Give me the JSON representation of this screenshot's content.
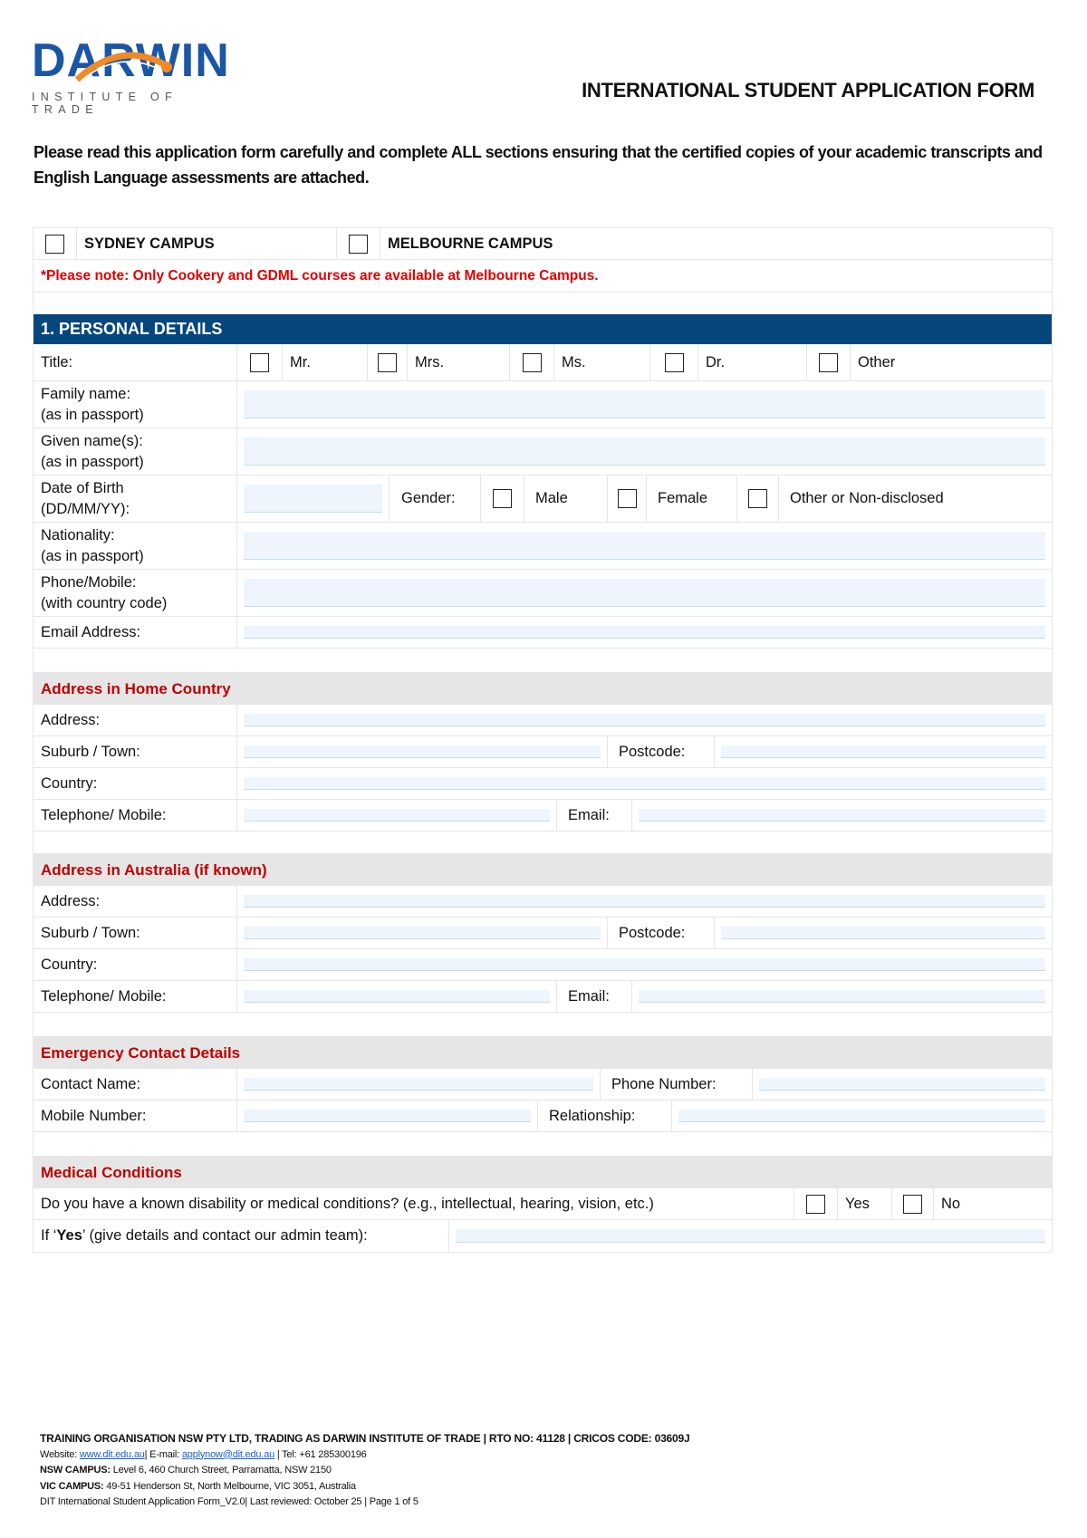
{
  "header": {
    "logo_word": "DARWIN",
    "logo_sub": "INSTITUTE OF TRADE",
    "title": "INTERNATIONAL STUDENT APPLICATION FORM",
    "intro": "Please read this application form carefully and complete ALL sections ensuring that the certified copies of your academic transcripts and English Language assessments are attached."
  },
  "colors": {
    "brand_blue": "#1a56a6",
    "brand_orange": "#f08a24",
    "section_header": "#05467d",
    "subsection_text": "#c00000",
    "note_red": "#e00000",
    "field_fill": "#eef5fd"
  },
  "campus": {
    "sydney": "SYDNEY CAMPUS",
    "melbourne": "MELBOURNE CAMPUS",
    "note": "*Please note: Only Cookery and GDML courses are available at Melbourne Campus."
  },
  "personal": {
    "heading": "1. PERSONAL DETAILS",
    "title_label": "Title:",
    "title_options": [
      "Mr.",
      "Mrs.",
      "Ms.",
      "Dr.",
      "Other"
    ],
    "family_label": "Family name:",
    "family_sub": "(as in passport)",
    "given_label": "Given name(s):",
    "given_sub": "(as in passport)",
    "dob_label": "Date of Birth",
    "dob_sub": "(DD/MM/YY):",
    "gender_label": "Gender:",
    "gender_options": [
      "Male",
      "Female",
      "Other or Non-disclosed"
    ],
    "nationality_label": "Nationality:",
    "nationality_sub": "(as in passport)",
    "phone_label": "Phone/Mobile:",
    "phone_sub": "(with country code)",
    "email_label": "Email Address:"
  },
  "home_address": {
    "heading": "Address in Home Country",
    "address": "Address:",
    "suburb": "Suburb / Town:",
    "postcode": "Postcode:",
    "country": "Country:",
    "telephone": "Telephone/ Mobile:",
    "email": "Email:"
  },
  "aus_address": {
    "heading": "Address in Australia (if known)",
    "address": "Address:",
    "suburb": "Suburb / Town:",
    "postcode": "Postcode:",
    "country": "Country:",
    "telephone": "Telephone/ Mobile:",
    "email": "Email:"
  },
  "emergency": {
    "heading": "Emergency Contact Details",
    "contact_name": "Contact Name:",
    "phone_number": "Phone Number:",
    "mobile_number": "Mobile Number:",
    "relationship": "Relationship:"
  },
  "medical": {
    "heading": "Medical Conditions",
    "question": "Do you have a known disability or medical conditions? (e.g., intellectual, hearing, vision, etc.)",
    "yes": "Yes",
    "no": "No",
    "details_pre": "If ‘",
    "details_bold": "Yes",
    "details_post": "’ (give details and contact our admin team):"
  },
  "footer": {
    "line1": "TRAINING ORGANISATION NSW PTY LTD, TRADING AS DARWIN INSTITUTE OF TRADE | RTO NO: 41128 | CRICOS CODE: 03609J",
    "website_label": "Website: ",
    "website": "www.dit.edu.au",
    "email_label": "| E-mail: ",
    "email": "applynow@dit.edu.au",
    "tel": " | Tel: +61 285300196",
    "nsw_label": "NSW CAMPUS:",
    "nsw": " Level 6, 460 Church Street, Parramatta, NSW 2150",
    "vic_label": "VIC CAMPUS:",
    "vic": " 49-51 Henderson St, North Melbourne, VIC 3051, Australia",
    "doc_line": "DIT International Student Application Form_V2.0| Last reviewed: October 25 | Page  1  of  5"
  }
}
